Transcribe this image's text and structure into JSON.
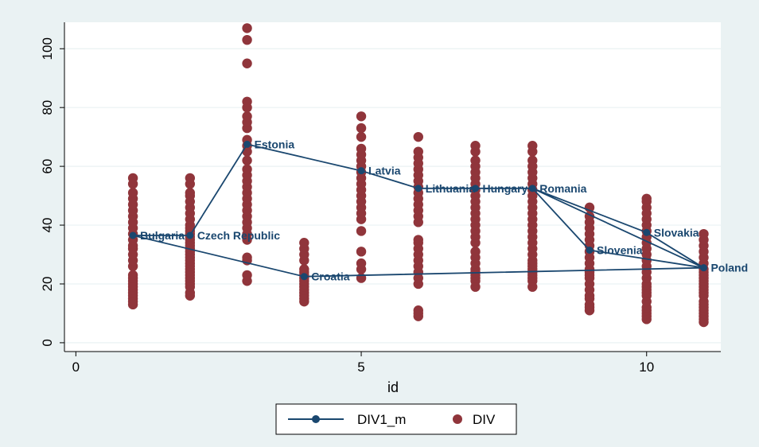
{
  "chart_data": {
    "type": "scatter",
    "xlabel": "id",
    "ylabel": "",
    "xlim": [
      -0.2,
      11.3
    ],
    "ylim": [
      -3,
      109
    ],
    "x_ticks": [
      0,
      5,
      10
    ],
    "y_ticks": [
      0,
      20,
      40,
      60,
      80,
      100
    ],
    "grid": "horizontal",
    "legend_placement": "bottom",
    "colors": {
      "line": "#1a476f",
      "dots": "#90353b",
      "plot_bg": "#ffffff",
      "outer_bg": "#eaf2f3",
      "grid": "#eaf2f3"
    },
    "line_series": {
      "name": "DIV1_m",
      "points": [
        {
          "x": 1,
          "y": 36.5,
          "label": "Bulgaria"
        },
        {
          "x": 2,
          "y": 36.5,
          "label": "Czech Republic"
        },
        {
          "x": 3,
          "y": 67.5,
          "label": "Estonia"
        },
        {
          "x": 4,
          "y": 22.5,
          "label": "Croatia"
        },
        {
          "x": 5,
          "y": 58.5,
          "label": "Latvia"
        },
        {
          "x": 6,
          "y": 52.5,
          "label": "Lithuania"
        },
        {
          "x": 7,
          "y": 52.5,
          "label": "Hungary"
        },
        {
          "x": 8,
          "y": 52.5,
          "label": "Romania"
        },
        {
          "x": 9,
          "y": 31.5,
          "label": "Slovenia"
        },
        {
          "x": 10,
          "y": 37.5,
          "label": "Slovakia"
        },
        {
          "x": 11,
          "y": 25.5,
          "label": "Poland"
        }
      ],
      "path_order": [
        1,
        2,
        3,
        5,
        6,
        7,
        8,
        10,
        11,
        9,
        8,
        11,
        4,
        1
      ]
    },
    "dot_series": {
      "name": "DIV",
      "points": [
        [
          1,
          13
        ],
        [
          1,
          14
        ],
        [
          1,
          15
        ],
        [
          1,
          16
        ],
        [
          1,
          17
        ],
        [
          1,
          18
        ],
        [
          1,
          19
        ],
        [
          1,
          20
        ],
        [
          1,
          21
        ],
        [
          1,
          22
        ],
        [
          1,
          23
        ],
        [
          1,
          26
        ],
        [
          1,
          28
        ],
        [
          1,
          30
        ],
        [
          1,
          32
        ],
        [
          1,
          33
        ],
        [
          1,
          35
        ],
        [
          1,
          37
        ],
        [
          1,
          39
        ],
        [
          1,
          41
        ],
        [
          1,
          43
        ],
        [
          1,
          45
        ],
        [
          1,
          47
        ],
        [
          1,
          49
        ],
        [
          1,
          51
        ],
        [
          1,
          54
        ],
        [
          1,
          56
        ],
        [
          2,
          16
        ],
        [
          2,
          17
        ],
        [
          2,
          19
        ],
        [
          2,
          20
        ],
        [
          2,
          21
        ],
        [
          2,
          22
        ],
        [
          2,
          23
        ],
        [
          2,
          24
        ],
        [
          2,
          25
        ],
        [
          2,
          26
        ],
        [
          2,
          27
        ],
        [
          2,
          28
        ],
        [
          2,
          29
        ],
        [
          2,
          30
        ],
        [
          2,
          31
        ],
        [
          2,
          32
        ],
        [
          2,
          33
        ],
        [
          2,
          34
        ],
        [
          2,
          35
        ],
        [
          2,
          36
        ],
        [
          2,
          37
        ],
        [
          2,
          38
        ],
        [
          2,
          39
        ],
        [
          2,
          40
        ],
        [
          2,
          42
        ],
        [
          2,
          44
        ],
        [
          2,
          46
        ],
        [
          2,
          48
        ],
        [
          2,
          50
        ],
        [
          2,
          51
        ],
        [
          2,
          54
        ],
        [
          2,
          56
        ],
        [
          3,
          21
        ],
        [
          3,
          23
        ],
        [
          3,
          28
        ],
        [
          3,
          29
        ],
        [
          3,
          35
        ],
        [
          3,
          37
        ],
        [
          3,
          39
        ],
        [
          3,
          41
        ],
        [
          3,
          43
        ],
        [
          3,
          45
        ],
        [
          3,
          47
        ],
        [
          3,
          49
        ],
        [
          3,
          51
        ],
        [
          3,
          53
        ],
        [
          3,
          55
        ],
        [
          3,
          57
        ],
        [
          3,
          59
        ],
        [
          3,
          62
        ],
        [
          3,
          65
        ],
        [
          3,
          67
        ],
        [
          3,
          69
        ],
        [
          3,
          73
        ],
        [
          3,
          75
        ],
        [
          3,
          77
        ],
        [
          3,
          80
        ],
        [
          3,
          82
        ],
        [
          3,
          95
        ],
        [
          3,
          103
        ],
        [
          3,
          107
        ],
        [
          4,
          14
        ],
        [
          4,
          15
        ],
        [
          4,
          16
        ],
        [
          4,
          17
        ],
        [
          4,
          18
        ],
        [
          4,
          19
        ],
        [
          4,
          20
        ],
        [
          4,
          21
        ],
        [
          4,
          22
        ],
        [
          4,
          23
        ],
        [
          4,
          24
        ],
        [
          4,
          25
        ],
        [
          4,
          28
        ],
        [
          4,
          30
        ],
        [
          4,
          32
        ],
        [
          4,
          34
        ],
        [
          5,
          22
        ],
        [
          5,
          25
        ],
        [
          5,
          27
        ],
        [
          5,
          31
        ],
        [
          5,
          38
        ],
        [
          5,
          42
        ],
        [
          5,
          44
        ],
        [
          5,
          46
        ],
        [
          5,
          48
        ],
        [
          5,
          50
        ],
        [
          5,
          52
        ],
        [
          5,
          54
        ],
        [
          5,
          56
        ],
        [
          5,
          58
        ],
        [
          5,
          60
        ],
        [
          5,
          62
        ],
        [
          5,
          64
        ],
        [
          5,
          66
        ],
        [
          5,
          70
        ],
        [
          5,
          73
        ],
        [
          5,
          77
        ],
        [
          6,
          9
        ],
        [
          6,
          10
        ],
        [
          6,
          11
        ],
        [
          6,
          20
        ],
        [
          6,
          22
        ],
        [
          6,
          24
        ],
        [
          6,
          26
        ],
        [
          6,
          28
        ],
        [
          6,
          30
        ],
        [
          6,
          32
        ],
        [
          6,
          34
        ],
        [
          6,
          35
        ],
        [
          6,
          41
        ],
        [
          6,
          43
        ],
        [
          6,
          45
        ],
        [
          6,
          47
        ],
        [
          6,
          49
        ],
        [
          6,
          51
        ],
        [
          6,
          53
        ],
        [
          6,
          55
        ],
        [
          6,
          57
        ],
        [
          6,
          59
        ],
        [
          6,
          61
        ],
        [
          6,
          63
        ],
        [
          6,
          65
        ],
        [
          6,
          70
        ],
        [
          7,
          19
        ],
        [
          7,
          21
        ],
        [
          7,
          22
        ],
        [
          7,
          23
        ],
        [
          7,
          24
        ],
        [
          7,
          25
        ],
        [
          7,
          27
        ],
        [
          7,
          29
        ],
        [
          7,
          31
        ],
        [
          7,
          34
        ],
        [
          7,
          36
        ],
        [
          7,
          38
        ],
        [
          7,
          40
        ],
        [
          7,
          42
        ],
        [
          7,
          44
        ],
        [
          7,
          46
        ],
        [
          7,
          48
        ],
        [
          7,
          50
        ],
        [
          7,
          52
        ],
        [
          7,
          54
        ],
        [
          7,
          56
        ],
        [
          7,
          58
        ],
        [
          7,
          60
        ],
        [
          7,
          62
        ],
        [
          7,
          65
        ],
        [
          7,
          67
        ],
        [
          8,
          19
        ],
        [
          8,
          21
        ],
        [
          8,
          22
        ],
        [
          8,
          23
        ],
        [
          8,
          24
        ],
        [
          8,
          25
        ],
        [
          8,
          26
        ],
        [
          8,
          27
        ],
        [
          8,
          28
        ],
        [
          8,
          30
        ],
        [
          8,
          32
        ],
        [
          8,
          34
        ],
        [
          8,
          36
        ],
        [
          8,
          38
        ],
        [
          8,
          40
        ],
        [
          8,
          42
        ],
        [
          8,
          44
        ],
        [
          8,
          46
        ],
        [
          8,
          48
        ],
        [
          8,
          50
        ],
        [
          8,
          52
        ],
        [
          8,
          54
        ],
        [
          8,
          56
        ],
        [
          8,
          58
        ],
        [
          8,
          60
        ],
        [
          8,
          62
        ],
        [
          8,
          65
        ],
        [
          8,
          67
        ],
        [
          9,
          11
        ],
        [
          9,
          12
        ],
        [
          9,
          13
        ],
        [
          9,
          15
        ],
        [
          9,
          16
        ],
        [
          9,
          18
        ],
        [
          9,
          20
        ],
        [
          9,
          22
        ],
        [
          9,
          23
        ],
        [
          9,
          24
        ],
        [
          9,
          25
        ],
        [
          9,
          27
        ],
        [
          9,
          29
        ],
        [
          9,
          31
        ],
        [
          9,
          33
        ],
        [
          9,
          35
        ],
        [
          9,
          37
        ],
        [
          9,
          39
        ],
        [
          9,
          41
        ],
        [
          9,
          43
        ],
        [
          9,
          46
        ],
        [
          10,
          8
        ],
        [
          10,
          9
        ],
        [
          10,
          10
        ],
        [
          10,
          11
        ],
        [
          10,
          12
        ],
        [
          10,
          14
        ],
        [
          10,
          16
        ],
        [
          10,
          17
        ],
        [
          10,
          18
        ],
        [
          10,
          19
        ],
        [
          10,
          20
        ],
        [
          10,
          22
        ],
        [
          10,
          24
        ],
        [
          10,
          26
        ],
        [
          10,
          28
        ],
        [
          10,
          30
        ],
        [
          10,
          32
        ],
        [
          10,
          34
        ],
        [
          10,
          36
        ],
        [
          10,
          38
        ],
        [
          10,
          40
        ],
        [
          10,
          42
        ],
        [
          10,
          44
        ],
        [
          10,
          46
        ],
        [
          10,
          48
        ],
        [
          10,
          49
        ],
        [
          11,
          7
        ],
        [
          11,
          8
        ],
        [
          11,
          9
        ],
        [
          11,
          10
        ],
        [
          11,
          11
        ],
        [
          11,
          12
        ],
        [
          11,
          13
        ],
        [
          11,
          14
        ],
        [
          11,
          16
        ],
        [
          11,
          17
        ],
        [
          11,
          18
        ],
        [
          11,
          19
        ],
        [
          11,
          20
        ],
        [
          11,
          21
        ],
        [
          11,
          22
        ],
        [
          11,
          23
        ],
        [
          11,
          24
        ],
        [
          11,
          25
        ],
        [
          11,
          27
        ],
        [
          11,
          29
        ],
        [
          11,
          31
        ],
        [
          11,
          33
        ],
        [
          11,
          35
        ],
        [
          11,
          37
        ]
      ]
    },
    "legend": [
      {
        "name": "DIV1_m",
        "kind": "line-marker",
        "color": "#1a476f"
      },
      {
        "name": "DIV",
        "kind": "dot",
        "color": "#90353b"
      }
    ]
  }
}
